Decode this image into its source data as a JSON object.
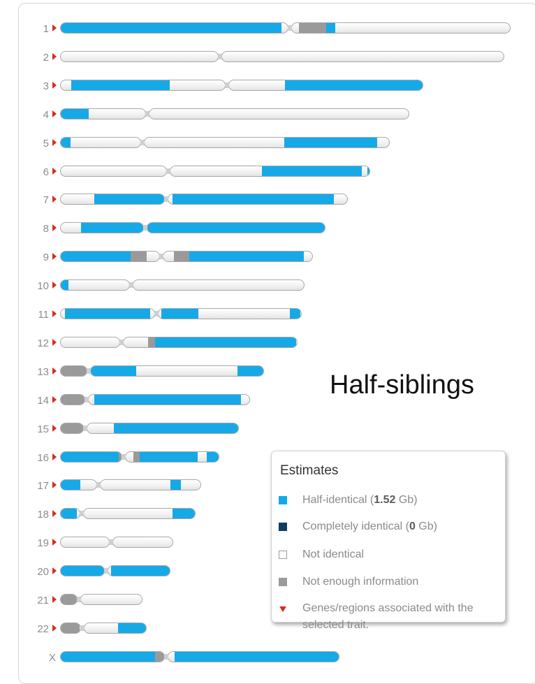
{
  "title": "Half-siblings",
  "colors": {
    "half_identical": "#16a9e8",
    "completely_identical": "#0e3d61",
    "not_identical": "#ffffff",
    "not_enough_information": "#9a9a9a",
    "marker": "#d92b1f"
  },
  "legend": {
    "title": "Estimates",
    "items": [
      {
        "key": "half",
        "label": "Half-identical (",
        "value": "1.52",
        "suffix": " Gb)"
      },
      {
        "key": "ident",
        "label": "Completely identical (",
        "value": "0",
        "suffix": " Gb)"
      },
      {
        "key": "none",
        "label": "Not identical"
      },
      {
        "key": "noinfo",
        "label": "Not enough information"
      },
      {
        "key": "marker",
        "label": "Genes/regions associated with the selected trait."
      }
    ]
  },
  "chromosomes": [
    {
      "label": "1",
      "marker": true,
      "length": 645,
      "centromere": 0.51,
      "segments": [
        [
          "half",
          0,
          0.49
        ],
        [
          "noinfo",
          0.53,
          0.59
        ],
        [
          "half",
          0.59,
          0.61
        ]
      ]
    },
    {
      "label": "2",
      "marker": true,
      "length": 636,
      "centromere": 0.36,
      "segments": []
    },
    {
      "label": "3",
      "marker": true,
      "length": 520,
      "centromere": 0.46,
      "segments": [
        [
          "half",
          0.03,
          0.3
        ],
        [
          "half",
          0.62,
          1.0
        ]
      ]
    },
    {
      "label": "4",
      "marker": true,
      "length": 500,
      "centromere": 0.25,
      "segments": [
        [
          "half",
          0,
          0.08
        ]
      ]
    },
    {
      "label": "5",
      "marker": true,
      "length": 472,
      "centromere": 0.25,
      "segments": [
        [
          "half",
          0,
          0.03
        ],
        [
          "half",
          0.68,
          0.96
        ]
      ]
    },
    {
      "label": "6",
      "marker": true,
      "length": 444,
      "centromere": 0.35,
      "segments": [
        [
          "half",
          0.65,
          0.97
        ],
        [
          "half",
          0.99,
          1.0
        ]
      ]
    },
    {
      "label": "7",
      "marker": true,
      "length": 412,
      "centromere": 0.37,
      "segments": [
        [
          "half",
          0.12,
          0.36
        ],
        [
          "half",
          0.39,
          0.95
        ]
      ]
    },
    {
      "label": "8",
      "marker": true,
      "length": 380,
      "centromere": 0.32,
      "segments": [
        [
          "half",
          0.08,
          1.0
        ]
      ]
    },
    {
      "label": "9",
      "marker": true,
      "length": 362,
      "centromere": 0.4,
      "segments": [
        [
          "half",
          0,
          0.28
        ],
        [
          "noinfo",
          0.28,
          0.34
        ],
        [
          "noinfo",
          0.45,
          0.51
        ],
        [
          "half",
          0.51,
          0.96
        ]
      ]
    },
    {
      "label": "10",
      "marker": true,
      "length": 350,
      "centromere": 0.29,
      "segments": [
        [
          "half",
          0,
          0.03
        ]
      ]
    },
    {
      "label": "11",
      "marker": true,
      "length": 346,
      "centromere": 0.4,
      "segments": [
        [
          "half",
          0.02,
          0.37
        ],
        [
          "half",
          0.42,
          0.57
        ],
        [
          "half",
          0.95,
          0.99
        ]
      ]
    },
    {
      "label": "12",
      "marker": true,
      "length": 340,
      "centromere": 0.26,
      "segments": [
        [
          "noinfo",
          0.37,
          0.4
        ],
        [
          "half",
          0.4,
          0.99
        ]
      ]
    },
    {
      "label": "13",
      "marker": true,
      "length": 292,
      "centromere": 0.14,
      "segments": [
        [
          "noinfo",
          0,
          0.13
        ],
        [
          "half",
          0.14,
          0.37
        ],
        [
          "half",
          0.87,
          1.0
        ]
      ]
    },
    {
      "label": "14",
      "marker": true,
      "length": 272,
      "centromere": 0.14,
      "segments": [
        [
          "noinfo",
          0,
          0.13
        ],
        [
          "half",
          0.18,
          0.95
        ]
      ]
    },
    {
      "label": "15",
      "marker": true,
      "length": 256,
      "centromere": 0.14,
      "segments": [
        [
          "noinfo",
          0,
          0.13
        ],
        [
          "half",
          0.3,
          1.0
        ]
      ]
    },
    {
      "label": "16",
      "marker": true,
      "length": 228,
      "centromere": 0.4,
      "segments": [
        [
          "half",
          0,
          0.37
        ],
        [
          "noinfo",
          0.37,
          0.4
        ],
        [
          "noinfo",
          0.46,
          0.5
        ],
        [
          "half",
          0.5,
          0.86
        ],
        [
          "half",
          0.92,
          1.0
        ]
      ]
    },
    {
      "label": "17",
      "marker": true,
      "length": 202,
      "centromere": 0.27,
      "segments": [
        [
          "half",
          0,
          0.14
        ],
        [
          "half",
          0.78,
          0.85
        ]
      ]
    },
    {
      "label": "18",
      "marker": true,
      "length": 194,
      "centromere": 0.16,
      "segments": [
        [
          "half",
          0,
          0.12
        ],
        [
          "half",
          0.83,
          1.0
        ]
      ]
    },
    {
      "label": "19",
      "marker": true,
      "length": 162,
      "centromere": 0.45,
      "segments": []
    },
    {
      "label": "20",
      "marker": true,
      "length": 158,
      "centromere": 0.42,
      "segments": [
        [
          "half",
          0,
          0.4
        ],
        [
          "half",
          0.46,
          1.0
        ]
      ]
    },
    {
      "label": "21",
      "marker": true,
      "length": 118,
      "centromere": 0.23,
      "segments": [
        [
          "noinfo",
          0,
          0.22
        ]
      ]
    },
    {
      "label": "22",
      "marker": true,
      "length": 124,
      "centromere": 0.26,
      "segments": [
        [
          "noinfo",
          0,
          0.22
        ],
        [
          "half",
          0.67,
          1.0
        ]
      ]
    },
    {
      "label": "X",
      "marker": false,
      "length": 400,
      "centromere": 0.38,
      "segments": [
        [
          "half",
          0,
          0.34
        ],
        [
          "noinfo",
          0.34,
          0.37
        ],
        [
          "half",
          0.41,
          1.0
        ]
      ]
    }
  ]
}
